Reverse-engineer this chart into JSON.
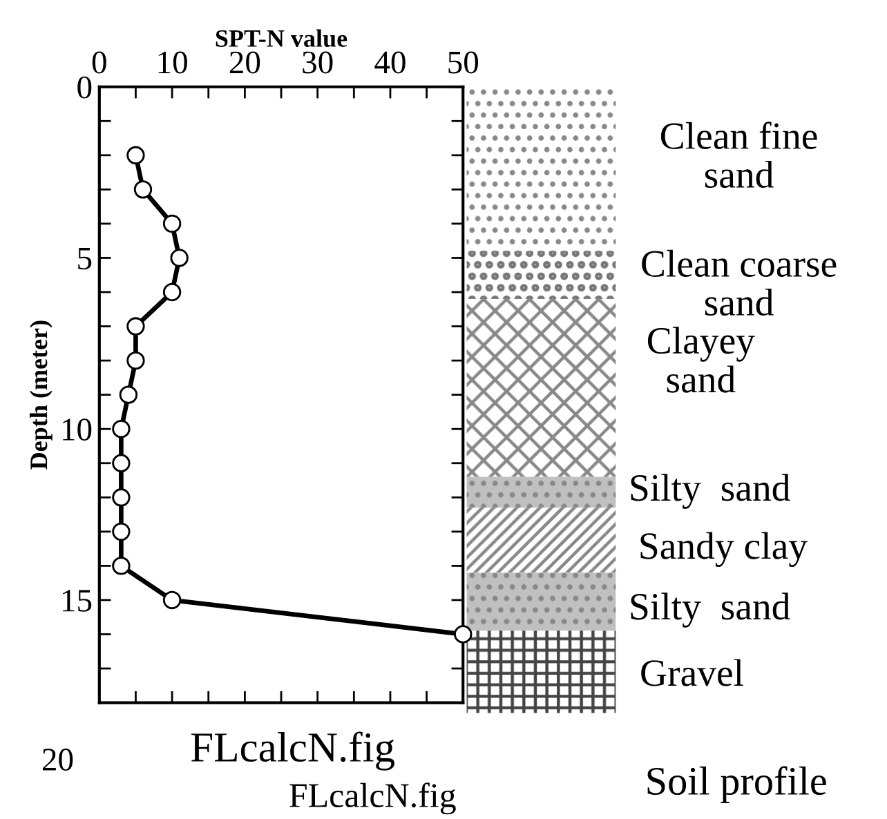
{
  "chart_data": {
    "type": "line",
    "xlabel": "SPT-N value",
    "ylabel": "Depth (meter)",
    "x": [
      5,
      6,
      10,
      11,
      10,
      5,
      5,
      4,
      3,
      3,
      3,
      3,
      3,
      10,
      50
    ],
    "values": [
      2,
      3,
      4,
      5,
      6,
      7,
      8,
      9,
      10,
      11,
      12,
      13,
      14,
      15,
      16
    ],
    "color": "#000000",
    "marker": "circle",
    "line_style": "solid",
    "xlim": [
      0,
      50
    ],
    "xticks": [
      0,
      {
        "value": 5,
        "label": null
      },
      10,
      {
        "value": 15,
        "label": null
      },
      20,
      {
        "value": 25,
        "label": null
      },
      30,
      {
        "value": 35,
        "label": null
      },
      40,
      {
        "value": 45,
        "label": null
      },
      50
    ],
    "ylim": [
      18,
      0
    ],
    "yticks": [
      0,
      {
        "value": 1,
        "label": null
      },
      {
        "value": 2,
        "label": null
      },
      {
        "value": 3,
        "label": null
      },
      {
        "value": 4,
        "label": null
      },
      5,
      {
        "value": 6,
        "label": null
      },
      {
        "value": 7,
        "label": null
      },
      {
        "value": 8,
        "label": null
      },
      {
        "value": 9,
        "label": null
      },
      10,
      {
        "value": 11,
        "label": null
      },
      {
        "value": 12,
        "label": null
      },
      {
        "value": 13,
        "label": null
      },
      {
        "value": 14,
        "label": null
      },
      15,
      {
        "value": 16,
        "label": null
      },
      {
        "value": 17,
        "label": null
      }
    ],
    "grid": false,
    "annotations": [
      "FLcalcN.fig",
      "20",
      "FLcalcN.fig",
      "Soil profile",
      "Clean fine\nsand",
      "Clean coarse\nsand",
      "Clayey\nsand",
      "Silty  sand",
      "Sandy clay",
      "Silty  sand",
      "Gravel"
    ]
  }
}
